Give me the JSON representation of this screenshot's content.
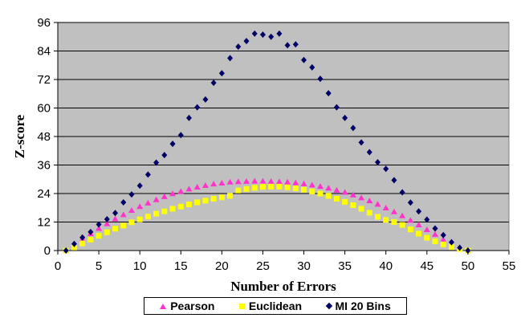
{
  "chart_data": {
    "type": "scatter",
    "title": "",
    "xlabel": "Number of Errors",
    "ylabel": "Z-score",
    "xlim": [
      0,
      55
    ],
    "ylim": [
      0,
      96
    ],
    "xticks": [
      0,
      5,
      10,
      15,
      20,
      25,
      30,
      35,
      40,
      45,
      50,
      55
    ],
    "yticks": [
      0,
      12,
      24,
      36,
      48,
      60,
      72,
      84,
      96
    ],
    "grid": true,
    "legend_position": "bottom",
    "plot_background": "#c0c0c0",
    "series": [
      {
        "name": "Pearson",
        "marker": "triangle",
        "color": "#ff33cc",
        "x": [
          1,
          2,
          3,
          4,
          5,
          6,
          7,
          8,
          9,
          10,
          11,
          12,
          13,
          14,
          15,
          16,
          17,
          18,
          19,
          20,
          21,
          22,
          23,
          24,
          25,
          26,
          27,
          28,
          29,
          30,
          31,
          32,
          33,
          34,
          35,
          36,
          37,
          38,
          39,
          40,
          41,
          42,
          43,
          44,
          45,
          46,
          47,
          48,
          49,
          50
        ],
        "y": [
          0.0,
          2.5,
          4.9,
          7.1,
          9.3,
          11.3,
          13.3,
          15.1,
          16.9,
          18.5,
          20.0,
          21.4,
          22.7,
          23.9,
          24.9,
          25.9,
          26.7,
          27.4,
          28.0,
          28.4,
          28.8,
          29.0,
          29.1,
          29.2,
          29.2,
          29.1,
          29.0,
          28.8,
          28.5,
          28.1,
          27.6,
          27.0,
          26.3,
          25.4,
          24.5,
          23.4,
          22.2,
          20.9,
          19.5,
          17.9,
          16.3,
          14.6,
          12.7,
          10.8,
          8.8,
          6.8,
          4.6,
          2.3,
          0.9,
          0.0
        ]
      },
      {
        "name": "Euclidean",
        "marker": "square",
        "color": "#ffff00",
        "x": [
          1,
          2,
          3,
          4,
          5,
          6,
          7,
          8,
          9,
          10,
          11,
          12,
          13,
          14,
          15,
          16,
          17,
          18,
          19,
          20,
          21,
          22,
          23,
          24,
          25,
          26,
          27,
          28,
          29,
          30,
          31,
          32,
          33,
          34,
          35,
          36,
          37,
          38,
          39,
          40,
          41,
          42,
          43,
          44,
          45,
          46,
          47,
          48,
          49,
          50
        ],
        "y": [
          0.0,
          1.3,
          3.0,
          4.6,
          6.2,
          7.7,
          9.2,
          10.5,
          11.9,
          13.1,
          14.3,
          15.5,
          16.5,
          17.6,
          18.5,
          19.4,
          20.3,
          21.0,
          21.8,
          22.4,
          23.0,
          25.3,
          25.9,
          26.4,
          26.8,
          26.9,
          26.9,
          26.6,
          26.2,
          25.6,
          24.9,
          24.0,
          23.0,
          21.8,
          20.5,
          19.1,
          17.6,
          15.9,
          14.2,
          12.9,
          12.0,
          10.8,
          8.9,
          7.1,
          5.4,
          3.9,
          2.6,
          1.5,
          0.6,
          0.0
        ]
      },
      {
        "name": "MI 20 Bins",
        "marker": "diamond",
        "color": "#000066",
        "x": [
          1,
          2,
          3,
          4,
          5,
          6,
          7,
          8,
          9,
          10,
          11,
          12,
          13,
          14,
          15,
          16,
          17,
          18,
          19,
          20,
          21,
          22,
          23,
          24,
          25,
          26,
          27,
          28,
          29,
          30,
          31,
          32,
          33,
          34,
          35,
          36,
          37,
          38,
          39,
          40,
          41,
          42,
          43,
          44,
          45,
          46,
          47,
          48,
          49,
          50
        ],
        "y": [
          0,
          2.8,
          5.5,
          7.8,
          11.0,
          13.2,
          15.8,
          20.3,
          23.6,
          27.3,
          32.0,
          37.0,
          40.2,
          44.9,
          48.6,
          55.8,
          60.3,
          63.6,
          70.6,
          74.6,
          81.0,
          85.8,
          88.2,
          91.3,
          90.9,
          90.0,
          91.3,
          86.4,
          86.8,
          80.2,
          77.1,
          72.3,
          66.2,
          60.3,
          55.8,
          51.6,
          45.5,
          41.4,
          37.2,
          34.4,
          29.6,
          24.5,
          20.2,
          16.5,
          13.0,
          9.3,
          6.5,
          3.5,
          1.2,
          0
        ]
      }
    ]
  },
  "legend": {
    "items": [
      {
        "label": "Pearson"
      },
      {
        "label": "Euclidean"
      },
      {
        "label": "MI 20 Bins"
      }
    ]
  }
}
